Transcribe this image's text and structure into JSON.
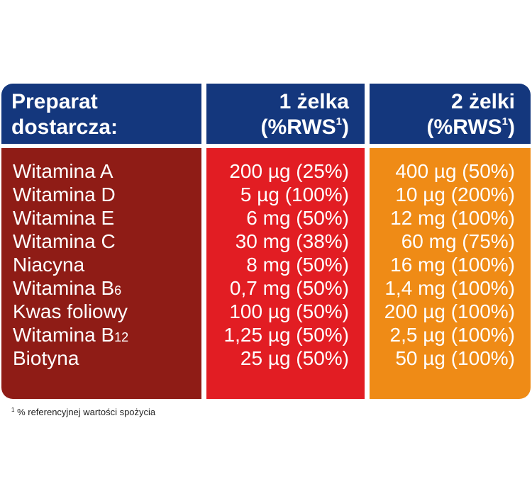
{
  "header": {
    "col1_line1": "Preparat",
    "col1_line2": "dostarcza:",
    "col2_line1": "1 żelka",
    "col2_line2": "(%RWS",
    "col2_sup": "1",
    "col2_close": ")",
    "col3_line1": "2 żelki",
    "col3_line2": "(%RWS",
    "col3_sup": "1",
    "col3_close": ")"
  },
  "rows": [
    {
      "name": "Witamina A",
      "sub": "",
      "one": "200 µg (25%)",
      "two": "400 µg (50%)"
    },
    {
      "name": "Witamina D",
      "sub": "",
      "one": "5 µg (100%)",
      "two": "10 µg (200%)"
    },
    {
      "name": "Witamina E",
      "sub": "",
      "one": "6 mg (50%)",
      "two": "12 mg (100%)"
    },
    {
      "name": "Witamina C",
      "sub": "",
      "one": "30 mg (38%)",
      "two": "60 mg (75%)"
    },
    {
      "name": "Niacyna",
      "sub": "",
      "one": "8 mg (50%)",
      "two": "16 mg (100%)"
    },
    {
      "name": "Witamina B",
      "sub": "6",
      "one": "0,7 mg (50%)",
      "two": "1,4 mg (100%)"
    },
    {
      "name": "Kwas foliowy",
      "sub": "",
      "one": "100 µg (50%)",
      "two": "200 µg (100%)"
    },
    {
      "name": "Witamina B",
      "sub": "12",
      "one": "1,25 µg (50%)",
      "two": "2,5 µg (100%)"
    },
    {
      "name": "Biotyna",
      "sub": "",
      "one": "25 µg (50%)",
      "two": "50 µg (100%)"
    }
  ],
  "footnote": {
    "marker": "1",
    "text": " % referencyjnej wartości spożycia"
  },
  "colors": {
    "header": "#14377d",
    "col1": "#8f1c16",
    "col2": "#e21d23",
    "col3": "#ef8b16"
  }
}
